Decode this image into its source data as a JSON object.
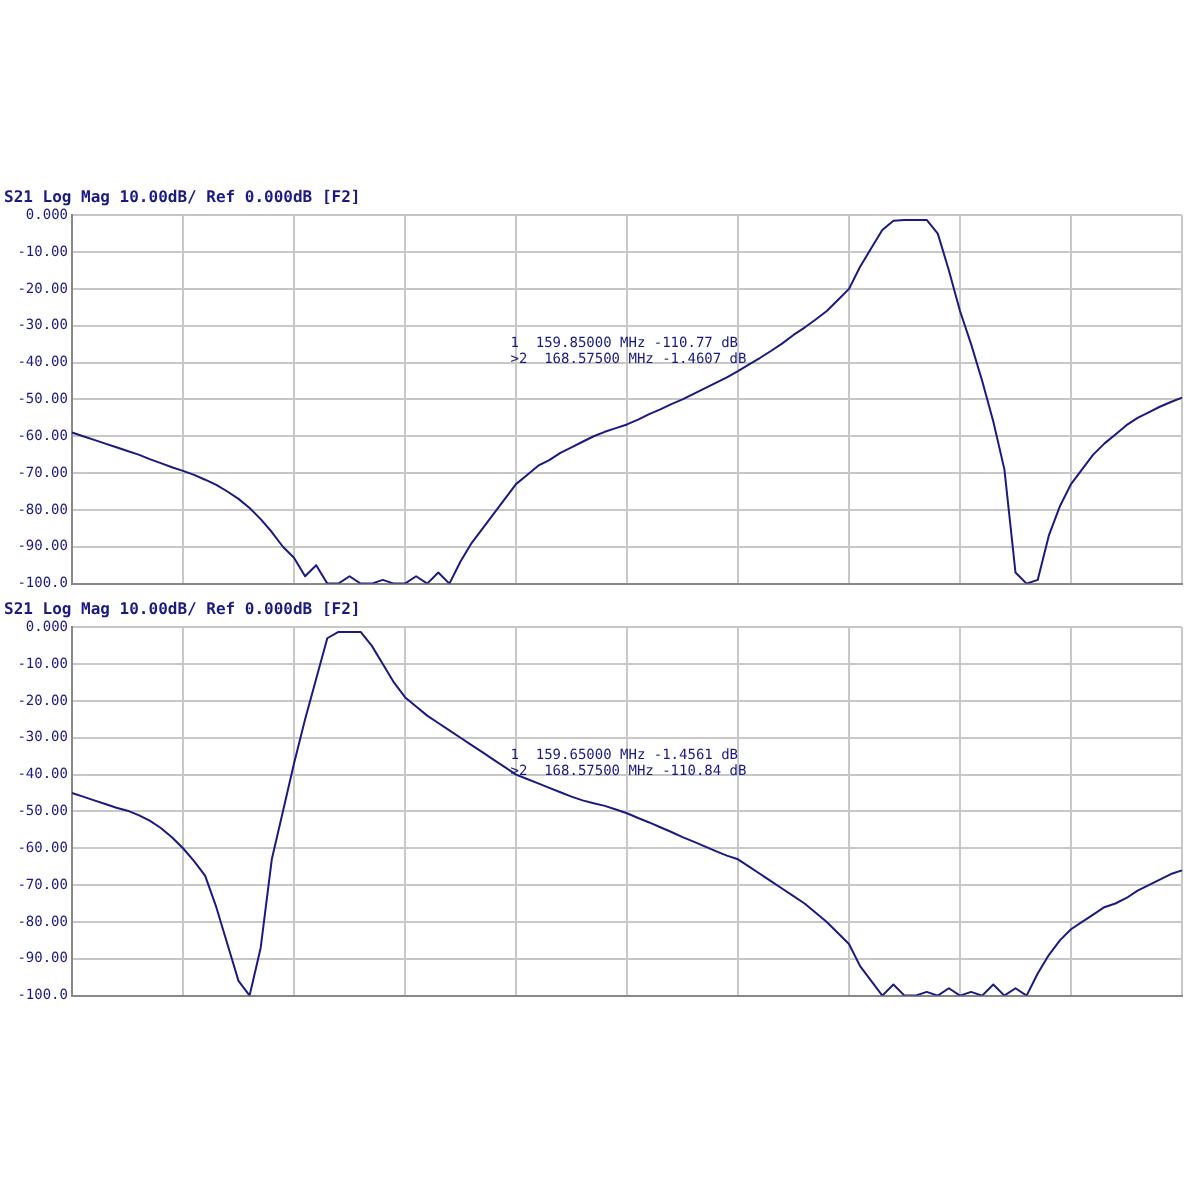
{
  "chart_data": [
    {
      "type": "line",
      "title": "S21 Log Mag 10.00dB/ Ref 0.000dB [F2]",
      "annotations": [
        "1  159.85000 MHz -110.77 dB",
        ">2  168.57500 MHz -1.4607 dB"
      ],
      "categories": [
        null,
        null,
        null,
        null,
        null,
        null,
        null,
        null,
        null,
        null,
        null,
        null,
        null,
        null,
        null,
        null,
        null,
        null,
        null,
        null,
        null,
        null,
        null,
        null,
        null,
        null,
        null,
        null,
        null,
        null,
        null,
        null,
        null,
        null,
        null,
        null,
        null,
        null,
        null,
        null,
        null,
        null,
        null,
        null,
        null,
        null,
        null,
        null,
        null,
        null,
        null,
        null,
        null,
        null,
        null,
        null,
        null,
        null,
        null,
        null,
        null,
        null,
        null,
        null,
        null,
        null,
        null,
        null,
        null,
        null,
        null,
        null,
        null,
        null,
        null,
        null,
        null,
        null,
        null,
        null,
        null,
        null,
        null,
        null,
        null,
        null,
        null,
        null,
        null,
        null,
        null,
        null,
        null,
        null,
        null,
        null,
        null,
        null,
        null,
        null,
        null
      ],
      "series": [
        {
          "color": "#1a1a80",
          "values": [
            -59,
            -60,
            -61,
            -62,
            -63,
            -64,
            -65,
            -66.2,
            -67.3,
            -68.4,
            -69.4,
            -70.5,
            -71.8,
            -73.2,
            -75,
            -77,
            -79.5,
            -82.5,
            -86,
            -90,
            -93,
            -98,
            -95,
            -100,
            -100,
            -98,
            -100,
            -100,
            -99,
            -100,
            -100,
            -98,
            -100,
            -97,
            -100,
            -94,
            -89,
            -85,
            -81,
            -77,
            -73,
            -70.5,
            -68,
            -66.5,
            -64.5,
            -63,
            -61.5,
            -60,
            -58.8,
            -57.8,
            -56.8,
            -55.5,
            -54,
            -52.7,
            -51.3,
            -50,
            -48.5,
            -47,
            -45.5,
            -44,
            -42.3,
            -40.5,
            -38.7,
            -36.8,
            -34.8,
            -32.5,
            -30.5,
            -28.3,
            -26,
            -23,
            -20,
            -14,
            -9,
            -4,
            -1.5,
            -1.3,
            -1.3,
            -1.3,
            -5,
            -15,
            -26,
            -35,
            -45,
            -56,
            -69,
            -97,
            -100,
            -99,
            -87,
            -79,
            -73,
            -69,
            -65,
            -62,
            -59.5,
            -57,
            -55,
            -53.5,
            -52,
            -50.7,
            -49.5
          ]
        }
      ],
      "ylim": [
        -100,
        0
      ],
      "yticks": [
        {
          "value": 0,
          "label": "0.000"
        },
        {
          "value": -10,
          "label": "-10.00"
        },
        {
          "value": -20,
          "label": "-20.00"
        },
        {
          "value": -30,
          "label": "-30.00"
        },
        {
          "value": -40,
          "label": "-40.00"
        },
        {
          "value": -50,
          "label": "-50.00"
        },
        {
          "value": -60,
          "label": "-60.00"
        },
        {
          "value": -70,
          "label": "-70.00"
        },
        {
          "value": -80,
          "label": "-80.00"
        },
        {
          "value": -90,
          "label": "-90.00"
        },
        {
          "value": -100,
          "label": "-100.0"
        }
      ],
      "tick_labels": "y",
      "grid": true,
      "marker": "none",
      "line_style": "solid"
    },
    {
      "type": "line",
      "title": "S21 Log Mag 10.00dB/ Ref 0.000dB [F2]",
      "annotations": [
        "1  159.65000 MHz -1.4561 dB",
        ">2  168.57500 MHz -110.84 dB"
      ],
      "categories": [
        null,
        null,
        null,
        null,
        null,
        null,
        null,
        null,
        null,
        null,
        null,
        null,
        null,
        null,
        null,
        null,
        null,
        null,
        null,
        null,
        null,
        null,
        null,
        null,
        null,
        null,
        null,
        null,
        null,
        null,
        null,
        null,
        null,
        null,
        null,
        null,
        null,
        null,
        null,
        null,
        null,
        null,
        null,
        null,
        null,
        null,
        null,
        null,
        null,
        null,
        null,
        null,
        null,
        null,
        null,
        null,
        null,
        null,
        null,
        null,
        null,
        null,
        null,
        null,
        null,
        null,
        null,
        null,
        null,
        null,
        null,
        null,
        null,
        null,
        null,
        null,
        null,
        null,
        null,
        null,
        null,
        null,
        null,
        null,
        null,
        null,
        null,
        null,
        null,
        null,
        null,
        null,
        null,
        null,
        null,
        null,
        null,
        null,
        null,
        null,
        null
      ],
      "series": [
        {
          "color": "#1a1a80",
          "values": [
            -45,
            -46,
            -47,
            -48,
            -49,
            -49.8,
            -51,
            -52.5,
            -54.5,
            -57,
            -60,
            -63.5,
            -67.5,
            -76,
            -86,
            -96,
            -100,
            -87,
            -63,
            -50,
            -37,
            -25,
            -14,
            -3,
            -1.3,
            -1.3,
            -1.3,
            -5,
            -10,
            -15,
            -19,
            -21.5,
            -24,
            -26,
            -28,
            -30,
            -32,
            -34,
            -36,
            -38,
            -40,
            -41.2,
            -42.4,
            -43.6,
            -44.8,
            -46,
            -47,
            -47.8,
            -48.5,
            -49.5,
            -50.5,
            -51.8,
            -53,
            -54.3,
            -55.6,
            -57,
            -58.2,
            -59.5,
            -60.8,
            -62,
            -63,
            -65,
            -67,
            -69,
            -71,
            -73,
            -75,
            -77.5,
            -80,
            -83,
            -86,
            -92,
            -96,
            -100,
            -97,
            -100,
            -100,
            -99,
            -100,
            -98,
            -100,
            -99,
            -100,
            -97,
            -100,
            -98,
            -100,
            -94,
            -89,
            -85,
            -82,
            -80,
            -78,
            -76,
            -75,
            -73.5,
            -71.5,
            -70,
            -68.5,
            -67,
            -66
          ]
        }
      ],
      "ylim": [
        -100,
        0
      ],
      "yticks": [
        {
          "value": 0,
          "label": "0.000"
        },
        {
          "value": -10,
          "label": "-10.00"
        },
        {
          "value": -20,
          "label": "-20.00"
        },
        {
          "value": -30,
          "label": "-30.00"
        },
        {
          "value": -40,
          "label": "-40.00"
        },
        {
          "value": -50,
          "label": "-50.00"
        },
        {
          "value": -60,
          "label": "-60.00"
        },
        {
          "value": -70,
          "label": "-70.00"
        },
        {
          "value": -80,
          "label": "-80.00"
        },
        {
          "value": -90,
          "label": "-90.00"
        },
        {
          "value": -100,
          "label": "-100.0"
        }
      ],
      "tick_labels": "y",
      "grid": true,
      "marker": "none",
      "line_style": "solid"
    }
  ]
}
